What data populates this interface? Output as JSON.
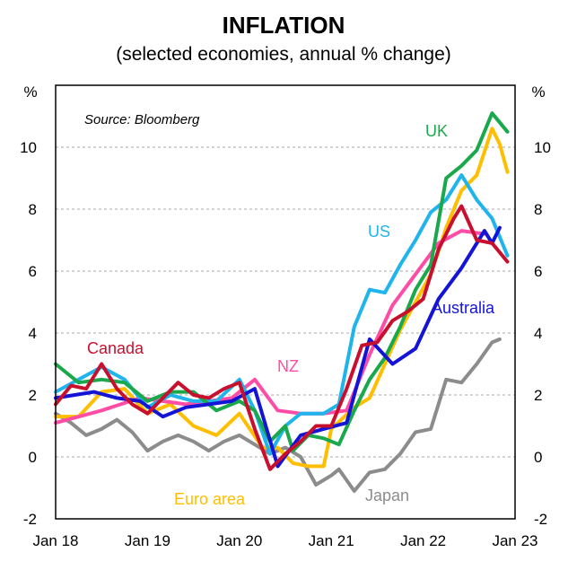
{
  "chart_data": {
    "type": "line",
    "title": "INFLATION",
    "subtitle": "(selected economies, annual % change)",
    "source": "Source: Bloomberg",
    "ylabel_left": "%",
    "ylabel_right": "%",
    "ylim": [
      -2,
      12
    ],
    "yticks": [
      -2,
      0,
      2,
      4,
      6,
      8,
      10
    ],
    "xlim": [
      "2018-01",
      "2023-01"
    ],
    "xticks": [
      {
        "label": "Jan 18",
        "date": "2018-01"
      },
      {
        "label": "Jan 19",
        "date": "2019-01"
      },
      {
        "label": "Jan 20",
        "date": "2020-01"
      },
      {
        "label": "Jan 21",
        "date": "2021-01"
      },
      {
        "label": "Jan 22",
        "date": "2022-01"
      },
      {
        "label": "Jan 23",
        "date": "2023-01"
      }
    ],
    "grid": true,
    "series": [
      {
        "name": "Japan",
        "color": "#8c8c8c",
        "points": [
          [
            "2018-01",
            1.4
          ],
          [
            "2018-03",
            1.1
          ],
          [
            "2018-05",
            0.7
          ],
          [
            "2018-07",
            0.9
          ],
          [
            "2018-09",
            1.2
          ],
          [
            "2018-11",
            0.8
          ],
          [
            "2019-01",
            0.2
          ],
          [
            "2019-03",
            0.5
          ],
          [
            "2019-05",
            0.7
          ],
          [
            "2019-07",
            0.5
          ],
          [
            "2019-09",
            0.2
          ],
          [
            "2019-11",
            0.5
          ],
          [
            "2020-01",
            0.7
          ],
          [
            "2020-03",
            0.4
          ],
          [
            "2020-05",
            0.1
          ],
          [
            "2020-07",
            0.3
          ],
          [
            "2020-09",
            0.0
          ],
          [
            "2020-11",
            -0.9
          ],
          [
            "2021-01",
            -0.6
          ],
          [
            "2021-02",
            -0.4
          ],
          [
            "2021-04",
            -1.1
          ],
          [
            "2021-06",
            -0.5
          ],
          [
            "2021-08",
            -0.4
          ],
          [
            "2021-10",
            0.1
          ],
          [
            "2021-12",
            0.8
          ],
          [
            "2022-02",
            0.9
          ],
          [
            "2022-04",
            2.5
          ],
          [
            "2022-06",
            2.4
          ],
          [
            "2022-08",
            3.0
          ],
          [
            "2022-10",
            3.7
          ],
          [
            "2022-11",
            3.8
          ]
        ]
      },
      {
        "name": "Euro area",
        "color": "#ffbf00",
        "points": [
          [
            "2018-01",
            1.3
          ],
          [
            "2018-04",
            1.3
          ],
          [
            "2018-07",
            2.1
          ],
          [
            "2018-10",
            2.2
          ],
          [
            "2019-01",
            1.4
          ],
          [
            "2019-04",
            1.7
          ],
          [
            "2019-07",
            1.0
          ],
          [
            "2019-10",
            0.7
          ],
          [
            "2020-01",
            1.4
          ],
          [
            "2020-04",
            0.3
          ],
          [
            "2020-06",
            0.3
          ],
          [
            "2020-08",
            -0.2
          ],
          [
            "2020-10",
            -0.3
          ],
          [
            "2020-12",
            -0.3
          ],
          [
            "2021-01",
            0.9
          ],
          [
            "2021-04",
            1.6
          ],
          [
            "2021-06",
            1.9
          ],
          [
            "2021-08",
            3.0
          ],
          [
            "2021-10",
            4.1
          ],
          [
            "2021-12",
            5.0
          ],
          [
            "2022-02",
            5.9
          ],
          [
            "2022-04",
            7.4
          ],
          [
            "2022-06",
            8.6
          ],
          [
            "2022-08",
            9.1
          ],
          [
            "2022-10",
            10.6
          ],
          [
            "2022-11",
            10.1
          ],
          [
            "2022-12",
            9.2
          ]
        ]
      },
      {
        "name": "NZ",
        "color": "#ff4da6",
        "points": [
          [
            "2018-01",
            1.1
          ],
          [
            "2018-07",
            1.5
          ],
          [
            "2018-12",
            1.9
          ],
          [
            "2019-06",
            1.7
          ],
          [
            "2019-12",
            1.9
          ],
          [
            "2020-03",
            2.5
          ],
          [
            "2020-06",
            1.5
          ],
          [
            "2020-09",
            1.4
          ],
          [
            "2020-12",
            1.4
          ],
          [
            "2021-03",
            1.5
          ],
          [
            "2021-06",
            3.3
          ],
          [
            "2021-09",
            4.9
          ],
          [
            "2021-12",
            5.9
          ],
          [
            "2022-03",
            6.9
          ],
          [
            "2022-06",
            7.3
          ],
          [
            "2022-09",
            7.2
          ]
        ]
      },
      {
        "name": "US",
        "color": "#1fb4ec",
        "points": [
          [
            "2018-01",
            2.1
          ],
          [
            "2018-04",
            2.5
          ],
          [
            "2018-07",
            2.9
          ],
          [
            "2018-10",
            2.5
          ],
          [
            "2019-01",
            1.6
          ],
          [
            "2019-04",
            2.0
          ],
          [
            "2019-07",
            1.8
          ],
          [
            "2019-10",
            1.8
          ],
          [
            "2020-01",
            2.5
          ],
          [
            "2020-03",
            1.5
          ],
          [
            "2020-05",
            0.1
          ],
          [
            "2020-07",
            1.0
          ],
          [
            "2020-09",
            1.4
          ],
          [
            "2020-12",
            1.4
          ],
          [
            "2021-02",
            1.7
          ],
          [
            "2021-04",
            4.2
          ],
          [
            "2021-06",
            5.4
          ],
          [
            "2021-08",
            5.3
          ],
          [
            "2021-10",
            6.2
          ],
          [
            "2021-12",
            7.0
          ],
          [
            "2022-02",
            7.9
          ],
          [
            "2022-04",
            8.3
          ],
          [
            "2022-06",
            9.1
          ],
          [
            "2022-08",
            8.3
          ],
          [
            "2022-10",
            7.7
          ],
          [
            "2022-12",
            6.5
          ]
        ]
      },
      {
        "name": "UK",
        "color": "#19a84b",
        "points": [
          [
            "2018-01",
            3.0
          ],
          [
            "2018-04",
            2.4
          ],
          [
            "2018-07",
            2.5
          ],
          [
            "2018-10",
            2.4
          ],
          [
            "2019-01",
            1.8
          ],
          [
            "2019-04",
            2.1
          ],
          [
            "2019-07",
            2.1
          ],
          [
            "2019-10",
            1.5
          ],
          [
            "2020-01",
            1.8
          ],
          [
            "2020-03",
            1.5
          ],
          [
            "2020-05",
            0.5
          ],
          [
            "2020-07",
            1.0
          ],
          [
            "2020-08",
            0.2
          ],
          [
            "2020-10",
            0.7
          ],
          [
            "2020-12",
            0.6
          ],
          [
            "2021-02",
            0.4
          ],
          [
            "2021-04",
            1.5
          ],
          [
            "2021-06",
            2.5
          ],
          [
            "2021-08",
            3.2
          ],
          [
            "2021-10",
            4.2
          ],
          [
            "2021-12",
            5.4
          ],
          [
            "2022-02",
            6.2
          ],
          [
            "2022-04",
            9.0
          ],
          [
            "2022-06",
            9.4
          ],
          [
            "2022-08",
            9.9
          ],
          [
            "2022-10",
            11.1
          ],
          [
            "2022-12",
            10.5
          ]
        ]
      },
      {
        "name": "Australia",
        "color": "#1414d6",
        "points": [
          [
            "2018-01",
            1.9
          ],
          [
            "2018-06",
            2.1
          ],
          [
            "2018-09",
            1.9
          ],
          [
            "2018-12",
            1.8
          ],
          [
            "2019-03",
            1.3
          ],
          [
            "2019-06",
            1.6
          ],
          [
            "2019-09",
            1.7
          ],
          [
            "2019-12",
            1.8
          ],
          [
            "2020-03",
            2.2
          ],
          [
            "2020-06",
            -0.3
          ],
          [
            "2020-09",
            0.7
          ],
          [
            "2020-12",
            0.9
          ],
          [
            "2021-03",
            1.1
          ],
          [
            "2021-06",
            3.8
          ],
          [
            "2021-09",
            3.0
          ],
          [
            "2021-12",
            3.5
          ],
          [
            "2022-03",
            5.1
          ],
          [
            "2022-06",
            6.1
          ],
          [
            "2022-09",
            7.3
          ],
          [
            "2022-10",
            6.9
          ],
          [
            "2022-11",
            7.4
          ]
        ]
      },
      {
        "name": "Canada",
        "color": "#c8102e",
        "points": [
          [
            "2018-01",
            1.7
          ],
          [
            "2018-03",
            2.3
          ],
          [
            "2018-05",
            2.2
          ],
          [
            "2018-07",
            3.0
          ],
          [
            "2018-09",
            2.2
          ],
          [
            "2018-11",
            1.7
          ],
          [
            "2019-01",
            1.4
          ],
          [
            "2019-03",
            1.9
          ],
          [
            "2019-05",
            2.4
          ],
          [
            "2019-07",
            2.0
          ],
          [
            "2019-09",
            1.9
          ],
          [
            "2019-11",
            2.2
          ],
          [
            "2020-01",
            2.4
          ],
          [
            "2020-03",
            0.9
          ],
          [
            "2020-05",
            -0.4
          ],
          [
            "2020-07",
            0.1
          ],
          [
            "2020-09",
            0.5
          ],
          [
            "2020-11",
            1.0
          ],
          [
            "2021-01",
            1.0
          ],
          [
            "2021-03",
            2.2
          ],
          [
            "2021-05",
            3.6
          ],
          [
            "2021-07",
            3.7
          ],
          [
            "2021-09",
            4.4
          ],
          [
            "2021-11",
            4.7
          ],
          [
            "2022-01",
            5.1
          ],
          [
            "2022-03",
            6.7
          ],
          [
            "2022-05",
            7.7
          ],
          [
            "2022-06",
            8.1
          ],
          [
            "2022-08",
            7.0
          ],
          [
            "2022-10",
            6.9
          ],
          [
            "2022-12",
            6.3
          ]
        ]
      }
    ],
    "annotations": [
      {
        "text": "UK",
        "color": "#19a84b"
      },
      {
        "text": "US",
        "color": "#1fb4ec"
      },
      {
        "text": "Australia",
        "color": "#1414d6"
      },
      {
        "text": "Canada",
        "color": "#c8102e"
      },
      {
        "text": "NZ",
        "color": "#ff4da6"
      },
      {
        "text": "Euro area",
        "color": "#ffbf00"
      },
      {
        "text": "Japan",
        "color": "#8c8c8c"
      }
    ]
  }
}
